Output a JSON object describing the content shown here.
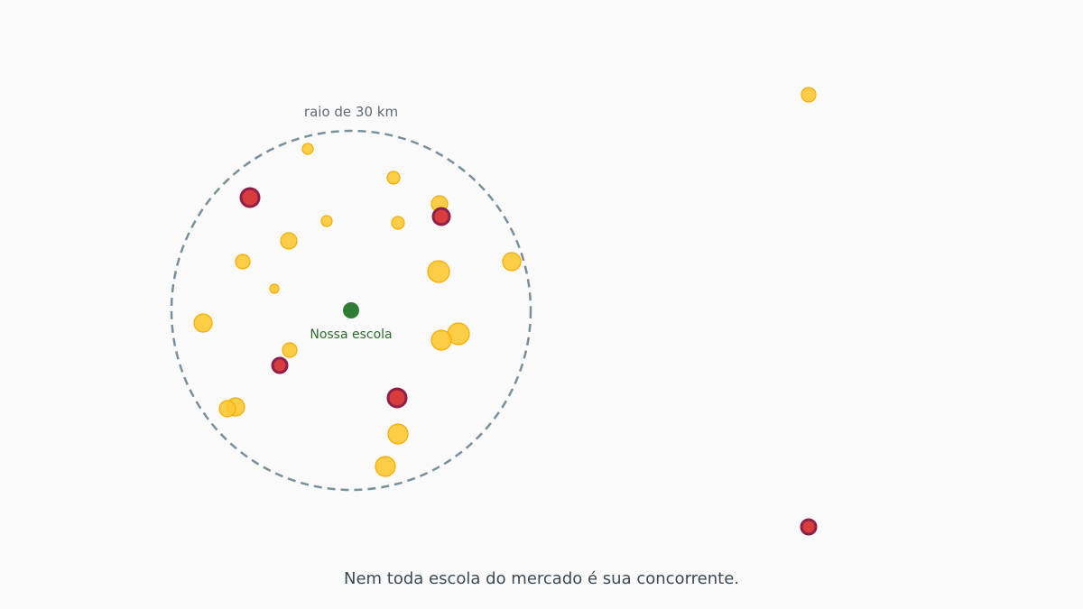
{
  "radius_label": "raio de 30 km",
  "center_label": "Nossa escola",
  "caption": "Nem toda escola do mercado é sua concorrente."
}
